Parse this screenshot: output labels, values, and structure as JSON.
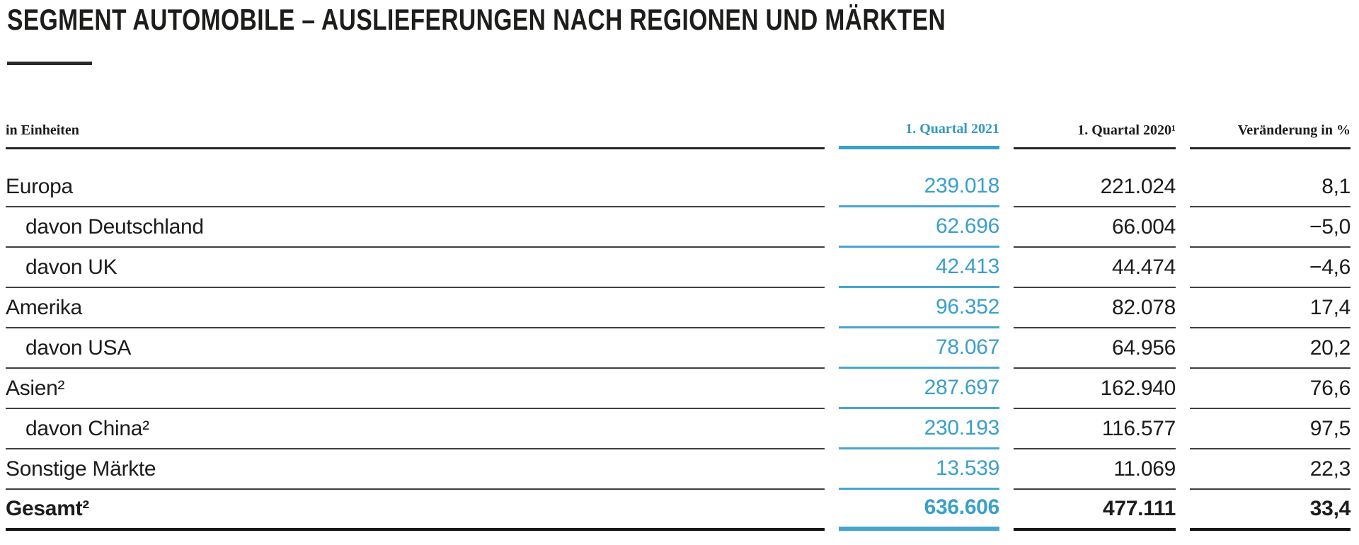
{
  "title": "SEGMENT AUTOMOBILE – AUSLIEFERUNGEN NACH REGIONEN UND MÄRKTEN",
  "colors": {
    "accent_blue_text": "#3A9FCB",
    "accent_blue_rule": "#49A5D0",
    "text": "#1C1C1C",
    "rule_dark": "#3F3F3F",
    "rule_heavy": "#161616"
  },
  "table": {
    "unit_label": "in Einheiten",
    "columns": {
      "q1_2021": "1. Quartal 2021",
      "q1_2020": "1. Quartal 2020¹",
      "change": "Veränderung in %"
    },
    "rows": [
      {
        "label": "Europa",
        "q1_2021": "239.018",
        "q1_2020": "221.024",
        "change": "8,1"
      },
      {
        "label": "davon Deutschland",
        "q1_2021": "62.696",
        "q1_2020": "66.004",
        "change": "−5,0"
      },
      {
        "label": "davon UK",
        "q1_2021": "42.413",
        "q1_2020": "44.474",
        "change": "−4,6"
      },
      {
        "label": "Amerika",
        "q1_2021": "96.352",
        "q1_2020": "82.078",
        "change": "17,4"
      },
      {
        "label": "davon USA",
        "q1_2021": "78.067",
        "q1_2020": "64.956",
        "change": "20,2"
      },
      {
        "label": "Asien²",
        "q1_2021": "287.697",
        "q1_2020": "162.940",
        "change": "76,6"
      },
      {
        "label": "davon China²",
        "q1_2021": "230.193",
        "q1_2020": "116.577",
        "change": "97,5"
      },
      {
        "label": "Sonstige Märkte",
        "q1_2021": "13.539",
        "q1_2020": "11.069",
        "change": "22,3"
      },
      {
        "label": "Gesamt²",
        "q1_2021": "636.606",
        "q1_2020": "477.111",
        "change": "33,4"
      }
    ]
  }
}
